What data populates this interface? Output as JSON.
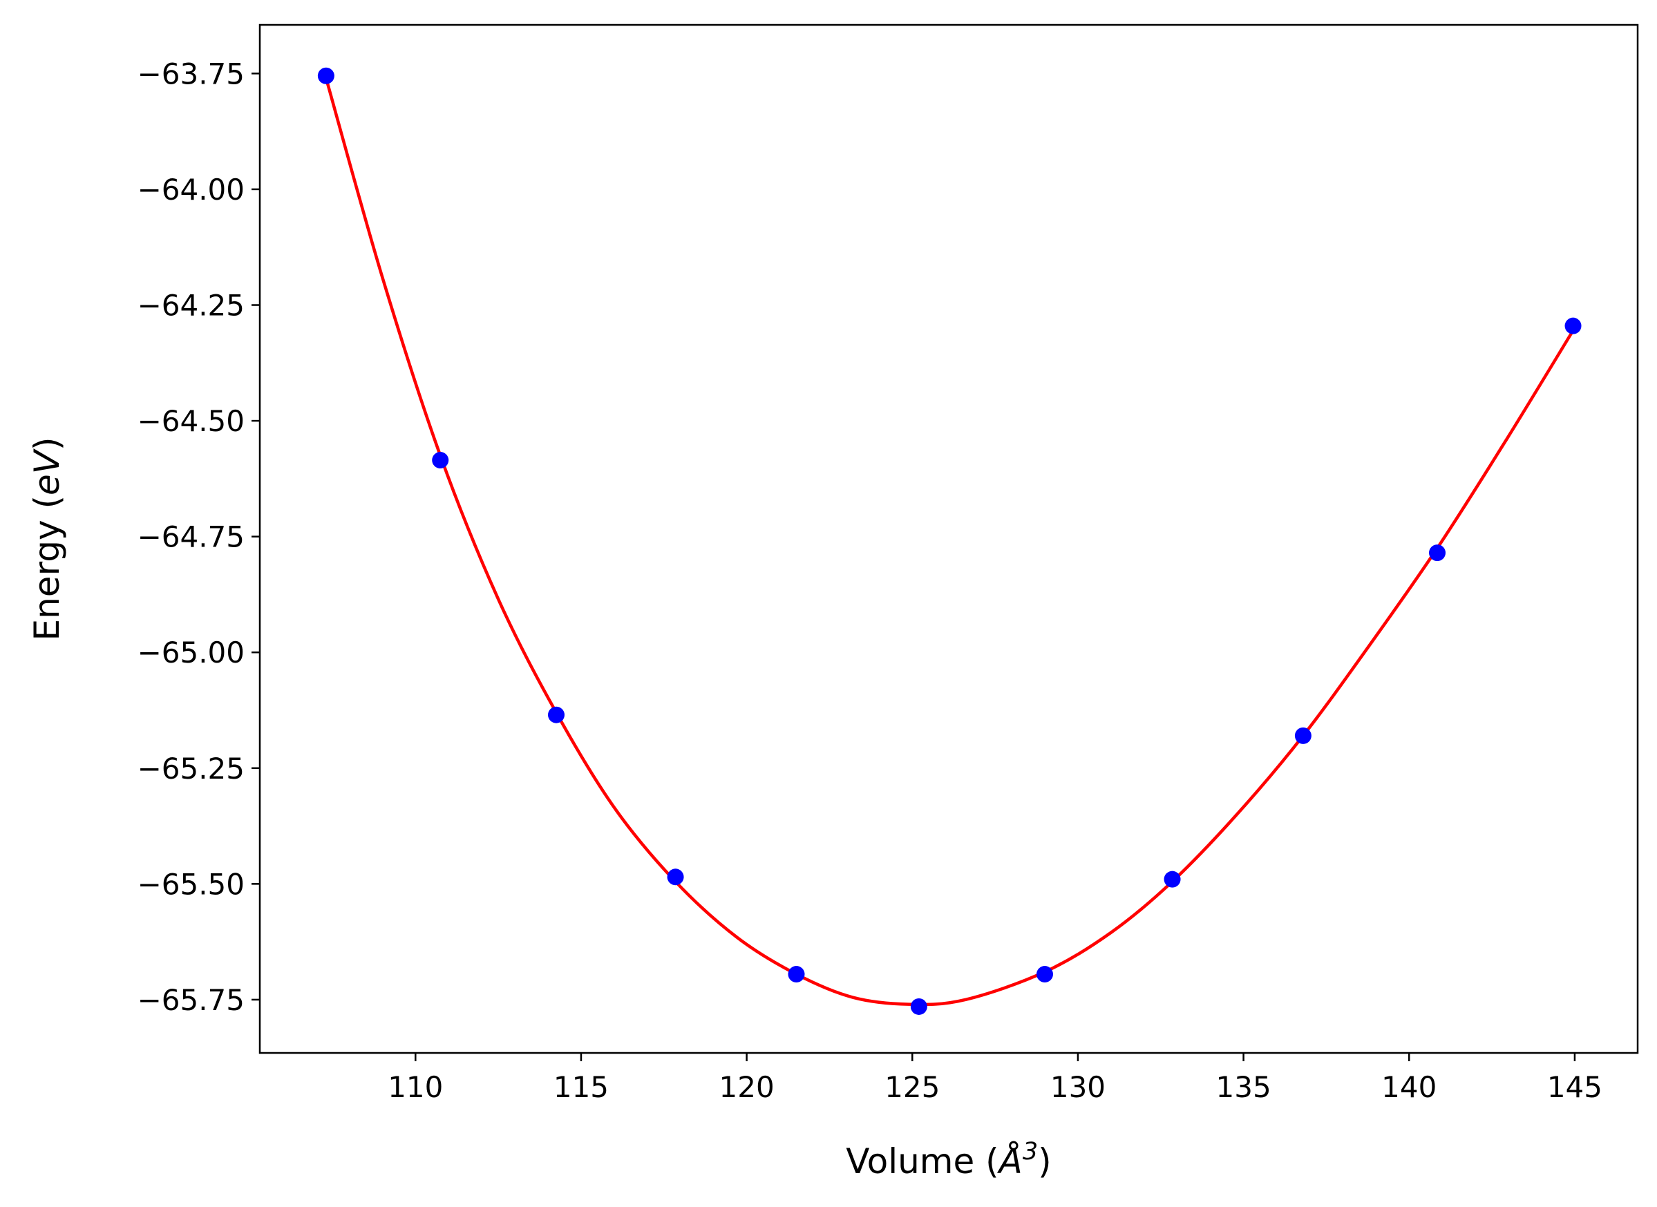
{
  "chart_data": {
    "type": "scatter",
    "title": "",
    "xlabel": "Volume (",
    "xlabel_symbol": "Å",
    "xlabel_exp": "3",
    "xlabel_close": ")",
    "ylabel": "Energy (",
    "ylabel_unit": "eV",
    "ylabel_close": ")",
    "xlim": [
      105.3,
      146.9
    ],
    "ylim": [
      -65.865,
      -63.645
    ],
    "xticks": [
      110,
      115,
      120,
      125,
      130,
      135,
      140,
      145
    ],
    "xtick_labels": [
      "110",
      "115",
      "120",
      "125",
      "130",
      "135",
      "140",
      "145"
    ],
    "yticks": [
      -63.75,
      -64.0,
      -64.25,
      -64.5,
      -64.75,
      -65.0,
      -65.25,
      -65.5,
      -65.75
    ],
    "ytick_labels": [
      "−63.75",
      "−64.00",
      "−64.25",
      "−64.50",
      "−64.75",
      "−65.00",
      "−65.25",
      "−65.50",
      "−65.75"
    ],
    "grid": false,
    "series": [
      {
        "kind": "points",
        "color": "#0000ff",
        "x": [
          107.3,
          110.75,
          114.25,
          117.85,
          121.5,
          125.2,
          129.0,
          132.85,
          136.8,
          140.85,
          144.95
        ],
        "y": [
          -63.755,
          -64.585,
          -65.135,
          -65.485,
          -65.695,
          -65.765,
          -65.695,
          -65.49,
          -65.18,
          -64.785,
          -64.295
        ]
      },
      {
        "kind": "fit-line",
        "color": "#ff0000",
        "x": [
          107.3,
          109.0,
          110.75,
          112.5,
          114.25,
          116.0,
          117.85,
          119.7,
          121.5,
          123.2,
          124.9,
          126.6,
          129.0,
          131.0,
          132.85,
          134.8,
          136.8,
          138.8,
          140.85,
          142.9,
          144.95
        ],
        "y": [
          -63.76,
          -64.19,
          -64.575,
          -64.885,
          -65.13,
          -65.335,
          -65.495,
          -65.615,
          -65.695,
          -65.745,
          -65.76,
          -65.75,
          -65.69,
          -65.605,
          -65.495,
          -65.35,
          -65.18,
          -64.985,
          -64.775,
          -64.545,
          -64.305
        ]
      }
    ]
  }
}
